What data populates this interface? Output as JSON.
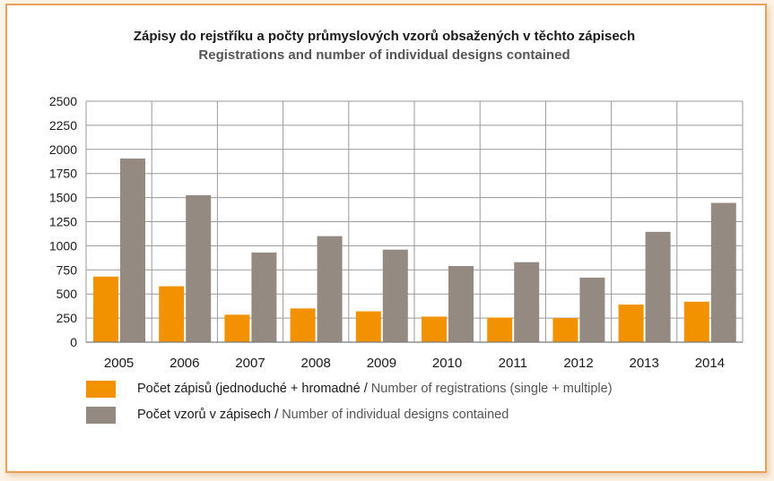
{
  "chart_data": {
    "type": "bar",
    "title": "Zápisy do rejstříku a počty průmyslových vzorů obsažených v těchto zápisech",
    "subtitle": "Registrations and number of individual designs contained",
    "categories": [
      "2005",
      "2006",
      "2007",
      "2008",
      "2009",
      "2010",
      "2011",
      "2012",
      "2013",
      "2014"
    ],
    "series": [
      {
        "name": "Počet zápisů (jednoduché + hromadné / Number of registrations (single + multiple)",
        "label_cz": "Počet zápisů (jednoduché + hromadné / ",
        "label_en": "Number of registrations (single + multiple)",
        "color": "#f39200",
        "values": [
          680,
          580,
          285,
          350,
          320,
          265,
          255,
          250,
          390,
          420
        ]
      },
      {
        "name": "Počet vzorů v zápisech / Number of individual designs contained",
        "label_cz": "Počet vzorů v zápisech / ",
        "label_en": "Number of individual designs contained",
        "color": "#958a81",
        "values": [
          1905,
          1525,
          930,
          1100,
          960,
          790,
          830,
          670,
          1145,
          1445
        ]
      }
    ],
    "yticks": [
      0,
      250,
      500,
      750,
      1000,
      1250,
      1500,
      1750,
      2000,
      2250,
      2500
    ],
    "ylim": [
      0,
      2500
    ],
    "grid": true
  }
}
